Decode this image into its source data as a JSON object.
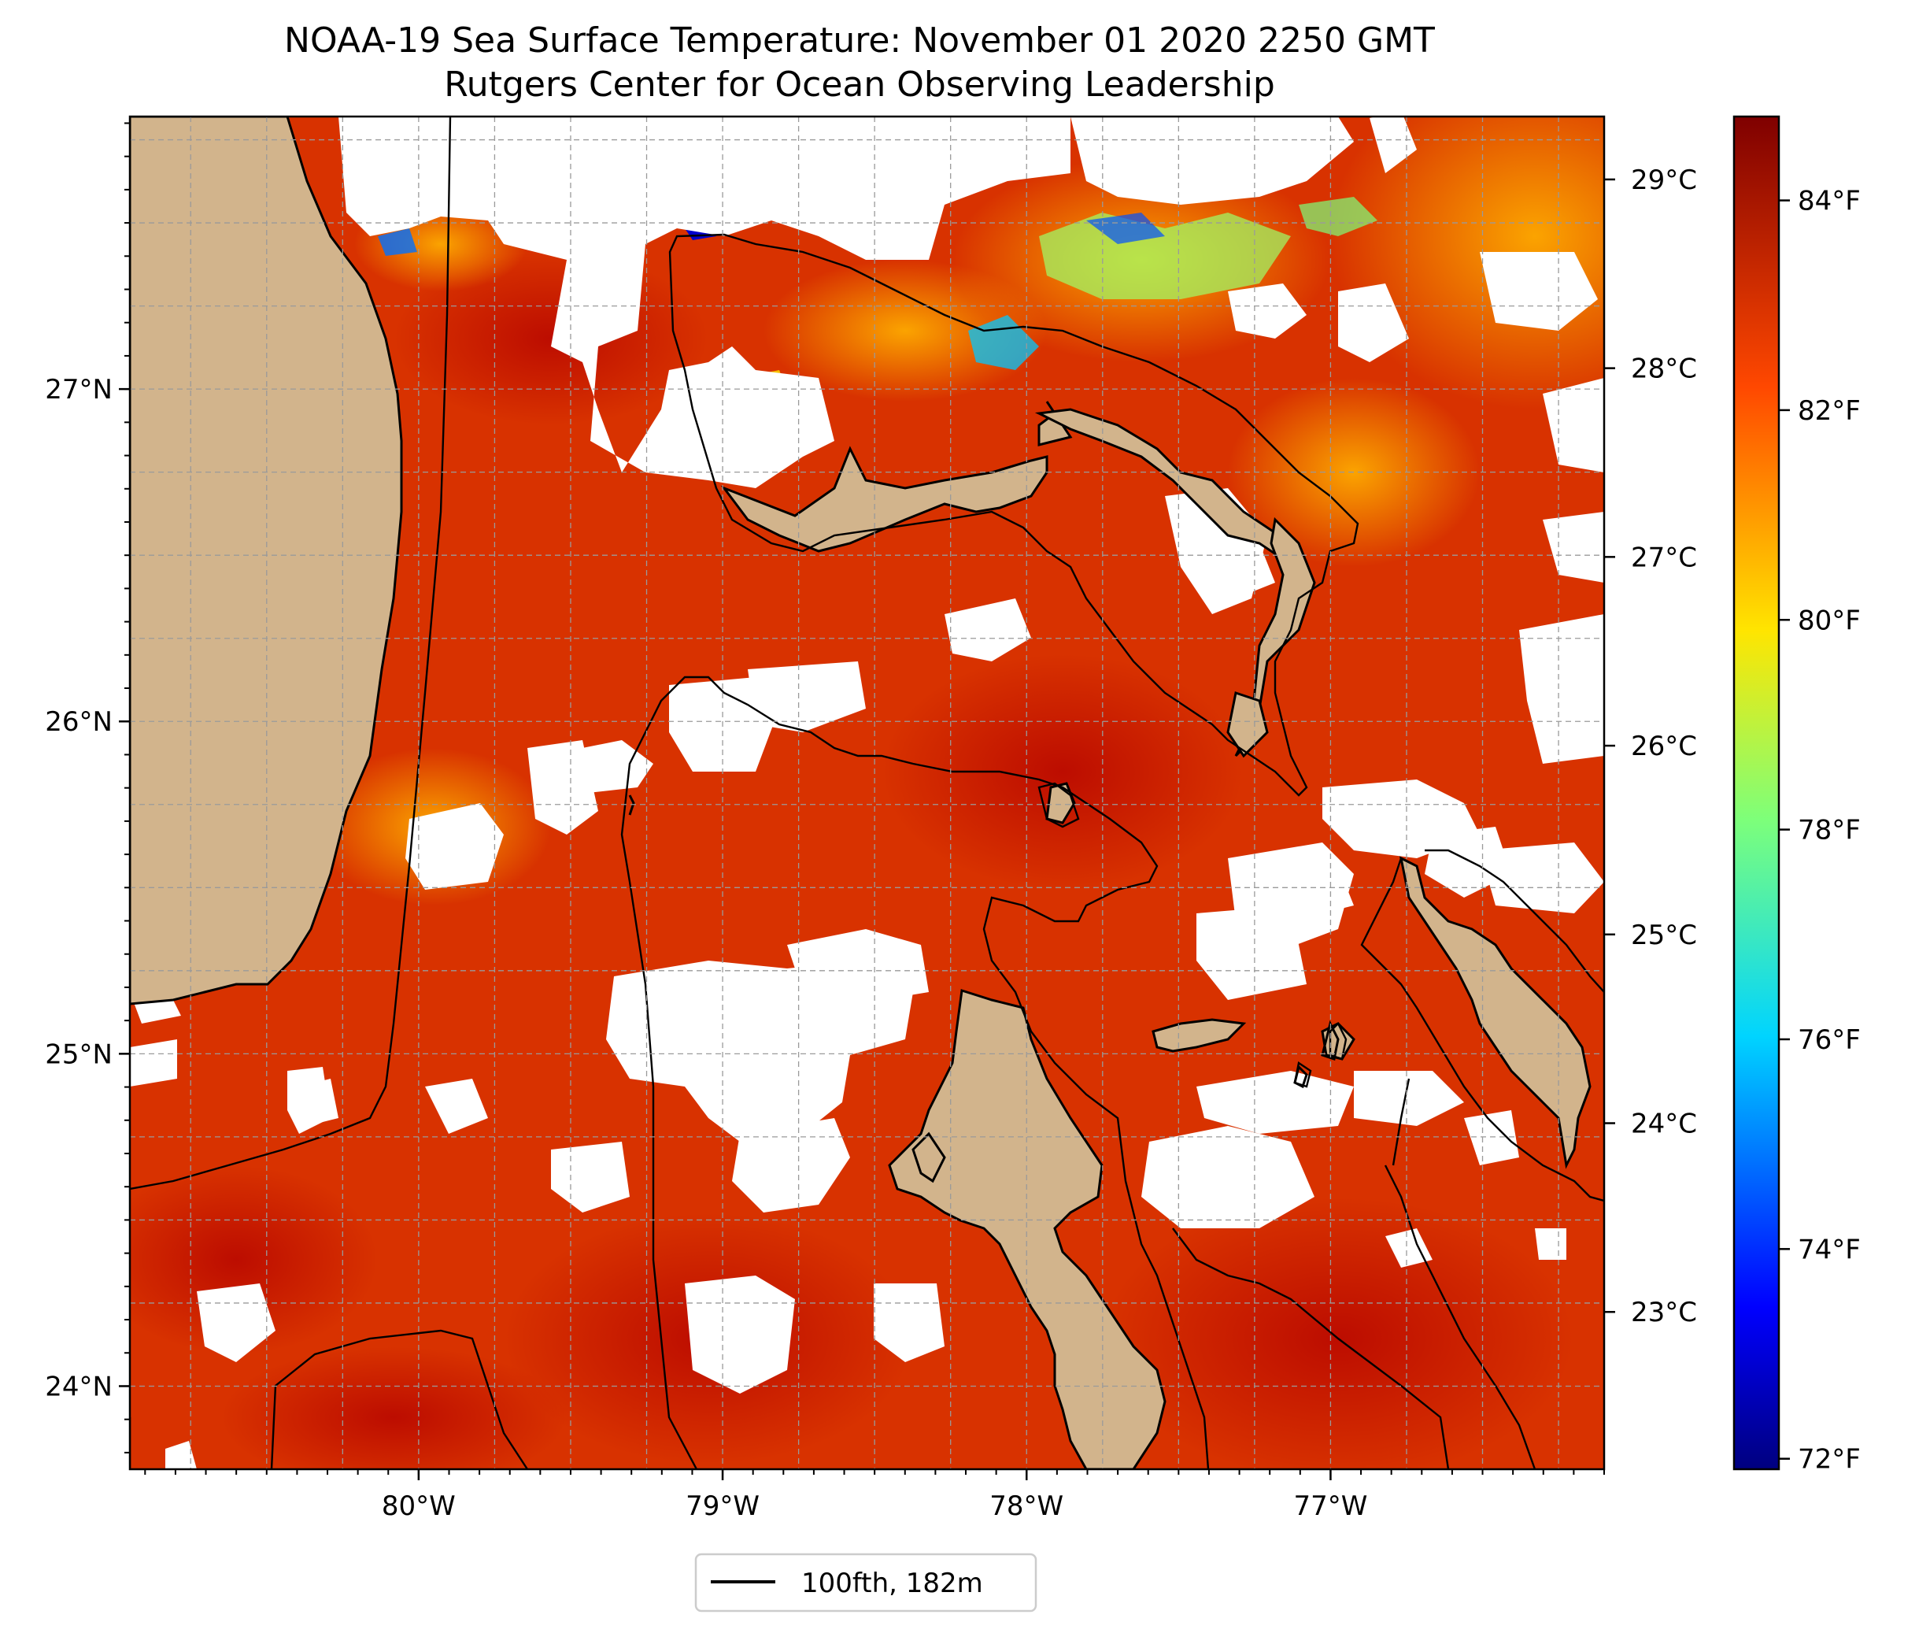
{
  "figure": {
    "title": "NOAA-19 Sea Surface Temperature: November 01 2020 2250 GMT",
    "subtitle": "Rutgers Center for Ocean Observing Leadership"
  },
  "map": {
    "lon_range": [
      -80.95,
      -76.1
    ],
    "lat_range": [
      23.75,
      27.82
    ],
    "land_color": "#d2b48c",
    "nodata_color": "#ffffff",
    "grid": true,
    "lon_ticks": [
      {
        "value": -80,
        "label": "80°W"
      },
      {
        "value": -79,
        "label": "79°W"
      },
      {
        "value": -78,
        "label": "78°W"
      },
      {
        "value": -77,
        "label": "77°W"
      }
    ],
    "lat_ticks": [
      {
        "value": 24,
        "label": "24°N"
      },
      {
        "value": 25,
        "label": "25°N"
      },
      {
        "value": 26,
        "label": "26°N"
      },
      {
        "value": 27,
        "label": "27°N"
      }
    ],
    "celsius_ticks": [
      {
        "value": 23,
        "label": "23°C"
      },
      {
        "value": 24,
        "label": "24°C"
      },
      {
        "value": 25,
        "label": "25°C"
      },
      {
        "value": 26,
        "label": "26°C"
      },
      {
        "value": 27,
        "label": "27°C"
      },
      {
        "value": 28,
        "label": "28°C"
      },
      {
        "value": 29,
        "label": "29°C"
      }
    ],
    "dominant_sst_f": 83
  },
  "colorbar": {
    "range_f": [
      71.9,
      84.8
    ],
    "colormap": "jet",
    "ticks": [
      {
        "value": 72,
        "label": "72°F"
      },
      {
        "value": 74,
        "label": "74°F"
      },
      {
        "value": 76,
        "label": "76°F"
      },
      {
        "value": 78,
        "label": "78°F"
      },
      {
        "value": 80,
        "label": "80°F"
      },
      {
        "value": 82,
        "label": "82°F"
      },
      {
        "value": 84,
        "label": "84°F"
      }
    ]
  },
  "legend": {
    "location": "bottom-center",
    "entries": [
      {
        "label": "100fth, 182m",
        "color": "#000000"
      }
    ]
  }
}
